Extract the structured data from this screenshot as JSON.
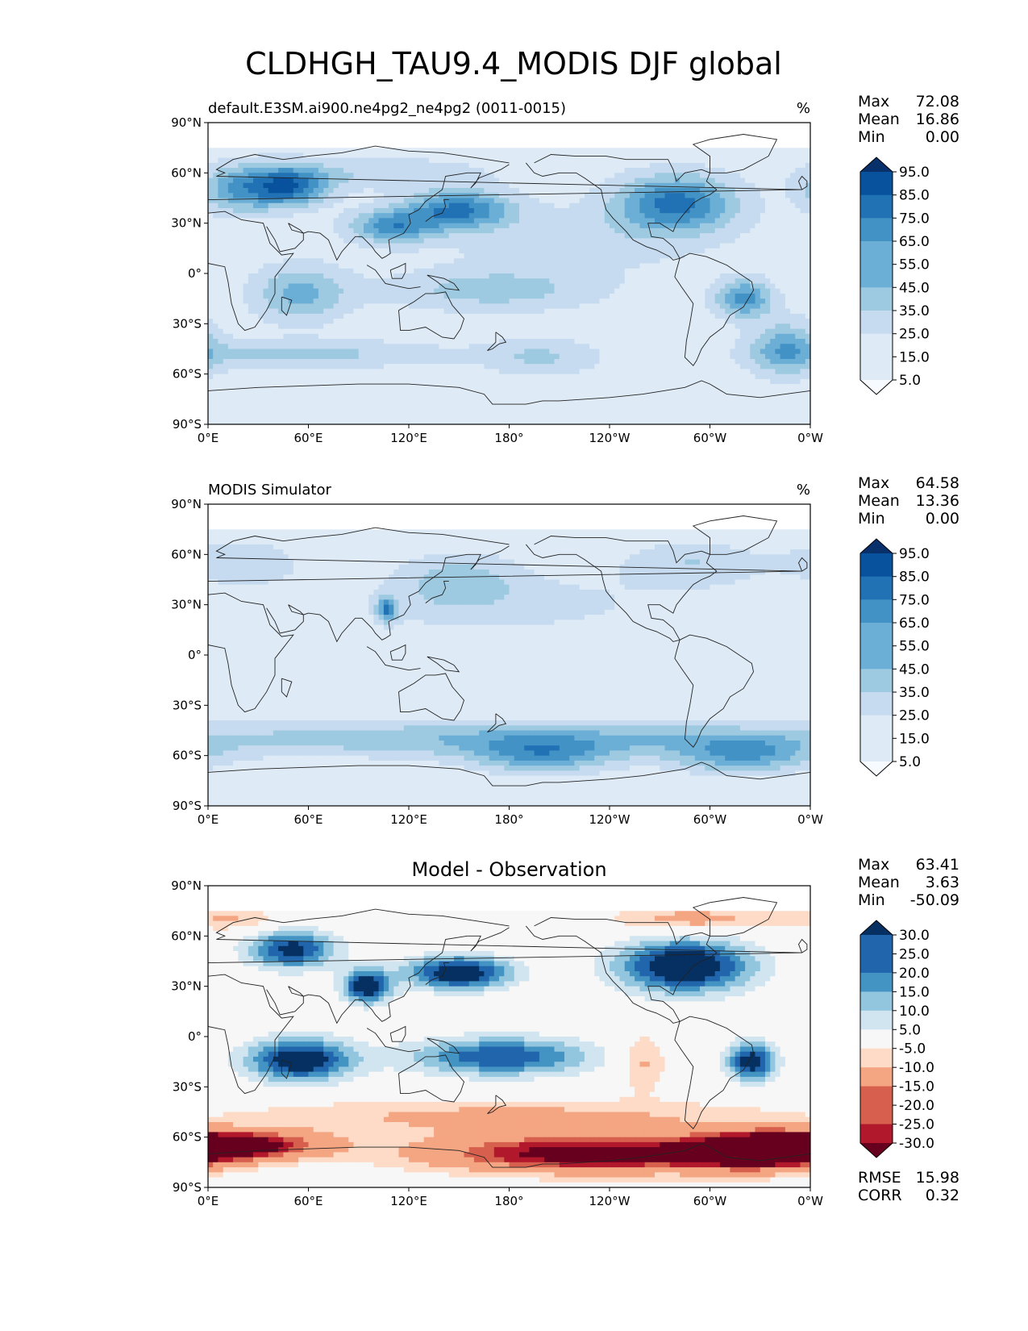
{
  "figure": {
    "title": "CLDHGH_TAU9.4_MODIS DJF global"
  },
  "colors": {
    "blues": [
      "#f7fbff",
      "#deebf7",
      "#c6dbef",
      "#9ecae1",
      "#6baed6",
      "#4292c6",
      "#2171b5",
      "#08519c",
      "#08306b"
    ],
    "diff": [
      "#67001f",
      "#b2182b",
      "#d6604d",
      "#f4a582",
      "#fddbc7",
      "#f7f7f7",
      "#d1e5f0",
      "#92c5de",
      "#4393c3",
      "#2166ac",
      "#053061"
    ],
    "coast": "#222222",
    "frame": "#000000"
  },
  "chart_data": [
    {
      "type": "heatmap",
      "panel": "test",
      "title_left": "default.E3SM.ai900.ne4pg2_ne4pg2 (0011-0015)",
      "title_right": "%",
      "title_center": "",
      "stats": [
        {
          "label": "Max",
          "value": "72.08"
        },
        {
          "label": "Mean",
          "value": "16.86"
        },
        {
          "label": "Min",
          "value": "0.00"
        }
      ],
      "colorbar": {
        "levels": [
          "95.0",
          "85.0",
          "75.0",
          "65.0",
          "55.0",
          "45.0",
          "35.0",
          "25.0",
          "15.0",
          "5.0"
        ],
        "extend": "both"
      },
      "xticks": [
        "0°E",
        "60°E",
        "120°E",
        "180°",
        "120°W",
        "60°W",
        "0°W"
      ],
      "yticks": [
        "90°N",
        "60°N",
        "30°N",
        "0°",
        "30°S",
        "60°S",
        "90°S"
      ],
      "xlim": [
        0,
        360
      ],
      "ylim": [
        -90,
        90
      ],
      "blobs": [
        {
          "lon": 20,
          "lat": 50,
          "sx": 18,
          "sy": 10,
          "value": 35
        },
        {
          "lon": 50,
          "lat": 52,
          "sx": 16,
          "sy": 8,
          "value": 48
        },
        {
          "lon": 110,
          "lat": 28,
          "sx": 18,
          "sy": 7,
          "value": 40
        },
        {
          "lon": 150,
          "lat": 38,
          "sx": 22,
          "sy": 8,
          "value": 48
        },
        {
          "lon": 280,
          "lat": 42,
          "sx": 25,
          "sy": 12,
          "value": 50
        },
        {
          "lon": 320,
          "lat": -15,
          "sx": 12,
          "sy": 8,
          "value": 42
        },
        {
          "lon": 345,
          "lat": -45,
          "sx": 15,
          "sy": 12,
          "value": 32
        },
        {
          "lon": 55,
          "lat": -12,
          "sx": 20,
          "sy": 12,
          "value": 30
        },
        {
          "lon": 170,
          "lat": -10,
          "sx": 45,
          "sy": 9,
          "value": 22
        },
        {
          "lon": 60,
          "lat": -48,
          "sx": 60,
          "sy": 6,
          "value": 20
        },
        {
          "lon": 200,
          "lat": -50,
          "sx": 25,
          "sy": 8,
          "value": 18
        },
        {
          "lon": 100,
          "lat": 60,
          "sx": 50,
          "sy": 7,
          "value": 15
        },
        {
          "lon": 220,
          "lat": 20,
          "sx": 60,
          "sy": 15,
          "value": 12
        }
      ],
      "background_value": 8
    },
    {
      "type": "heatmap",
      "panel": "reference",
      "title_left": "MODIS Simulator",
      "title_right": "%",
      "title_center": "",
      "stats": [
        {
          "label": "Max",
          "value": "64.58"
        },
        {
          "label": "Mean",
          "value": "13.36"
        },
        {
          "label": "Min",
          "value": "0.00"
        }
      ],
      "colorbar": {
        "levels": [
          "95.0",
          "85.0",
          "75.0",
          "65.0",
          "55.0",
          "45.0",
          "35.0",
          "25.0",
          "15.0",
          "5.0"
        ],
        "extend": "both"
      },
      "xticks": [
        "0°E",
        "60°E",
        "120°E",
        "180°",
        "120°W",
        "60°W",
        "0°W"
      ],
      "yticks": [
        "90°N",
        "60°N",
        "30°N",
        "0°",
        "30°S",
        "60°S",
        "90°S"
      ],
      "xlim": [
        0,
        360
      ],
      "ylim": [
        -90,
        90
      ],
      "blobs": [
        {
          "lon": 180,
          "lat": -50,
          "sx": 180,
          "sy": 8,
          "value": 28
        },
        {
          "lon": 200,
          "lat": -60,
          "sx": 30,
          "sy": 8,
          "value": 34
        },
        {
          "lon": 320,
          "lat": -60,
          "sx": 30,
          "sy": 8,
          "value": 34
        },
        {
          "lon": 107,
          "lat": 27,
          "sx": 4,
          "sy": 5,
          "value": 45
        },
        {
          "lon": 150,
          "lat": 45,
          "sx": 25,
          "sy": 12,
          "value": 20
        },
        {
          "lon": 290,
          "lat": 55,
          "sx": 30,
          "sy": 10,
          "value": 18
        },
        {
          "lon": 20,
          "lat": 55,
          "sx": 25,
          "sy": 10,
          "value": 18
        },
        {
          "lon": 180,
          "lat": 30,
          "sx": 80,
          "sy": 15,
          "value": 12
        }
      ],
      "background_value": 6
    },
    {
      "type": "heatmap",
      "panel": "difference",
      "title_left": "",
      "title_right": "",
      "title_center": "Model - Observation",
      "stats": [
        {
          "label": "Max",
          "value": "63.41"
        },
        {
          "label": "Mean",
          "value": "3.63"
        },
        {
          "label": "Min",
          "value": "-50.09"
        }
      ],
      "extra_stats": [
        {
          "label": "RMSE",
          "value": "15.98"
        },
        {
          "label": "CORR",
          "value": "0.32"
        }
      ],
      "colorbar": {
        "levels": [
          "30.0",
          "25.0",
          "20.0",
          "15.0",
          "10.0",
          "5.0",
          "-5.0",
          "-10.0",
          "-15.0",
          "-20.0",
          "-25.0",
          "-30.0"
        ],
        "extend": "both"
      },
      "xticks": [
        "0°E",
        "60°E",
        "120°E",
        "180°",
        "120°W",
        "60°W",
        "0°W"
      ],
      "yticks": [
        "90°N",
        "60°N",
        "30°N",
        "0°",
        "30°S",
        "60°S",
        "90°S"
      ],
      "xlim": [
        0,
        360
      ],
      "ylim": [
        -90,
        90
      ],
      "blobs": [
        {
          "lon": 50,
          "lat": 52,
          "sx": 18,
          "sy": 8,
          "value": 28
        },
        {
          "lon": 95,
          "lat": 30,
          "sx": 10,
          "sy": 7,
          "value": 32
        },
        {
          "lon": 150,
          "lat": 38,
          "sx": 22,
          "sy": 7,
          "value": 32
        },
        {
          "lon": 285,
          "lat": 42,
          "sx": 28,
          "sy": 11,
          "value": 34
        },
        {
          "lon": 55,
          "lat": -14,
          "sx": 22,
          "sy": 9,
          "value": 32
        },
        {
          "lon": 175,
          "lat": -12,
          "sx": 38,
          "sy": 8,
          "value": 25
        },
        {
          "lon": 325,
          "lat": -15,
          "sx": 10,
          "sy": 8,
          "value": 30
        },
        {
          "lon": 260,
          "lat": -15,
          "sx": 10,
          "sy": 12,
          "value": -12
        },
        {
          "lon": 20,
          "lat": -65,
          "sx": 35,
          "sy": 6,
          "value": -34
        },
        {
          "lon": 230,
          "lat": -70,
          "sx": 70,
          "sy": 8,
          "value": -36
        },
        {
          "lon": 330,
          "lat": -68,
          "sx": 30,
          "sy": 8,
          "value": -36
        },
        {
          "lon": 180,
          "lat": -48,
          "sx": 120,
          "sy": 8,
          "value": -12
        },
        {
          "lon": 290,
          "lat": 70,
          "sx": 35,
          "sy": 5,
          "value": -14
        },
        {
          "lon": 15,
          "lat": 70,
          "sx": 20,
          "sy": 5,
          "value": -10
        }
      ],
      "background_value": 0
    }
  ]
}
